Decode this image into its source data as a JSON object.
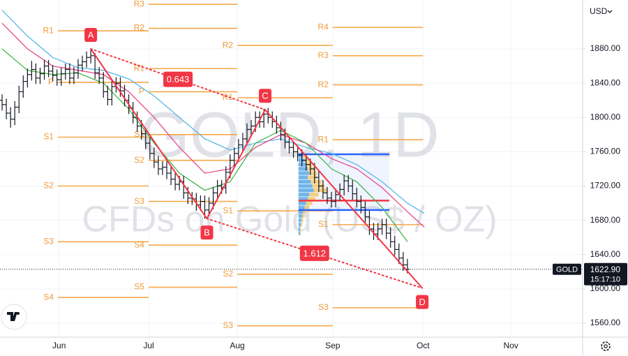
{
  "chart_data": {
    "type": "ohlc",
    "symbol": "GOLD",
    "currency": "USD",
    "watermark": {
      "title": "GOLD, 1D",
      "subtitle": "CFDs on Gold (US$ / OZ)"
    },
    "xlim": [
      -0.5,
      137.5
    ],
    "ylim": [
      1543.7,
      1937
    ],
    "grid": true,
    "xticks": [
      {
        "value": 13.5,
        "label": "Jun"
      },
      {
        "value": 34.7,
        "label": "Jul"
      },
      {
        "value": 55.7,
        "label": "Aug"
      },
      {
        "value": 78.3,
        "label": "Sep"
      },
      {
        "value": 99.7,
        "label": "Oct"
      },
      {
        "value": 120.5,
        "label": "Nov"
      }
    ],
    "yticks": [
      {
        "value": 1560,
        "label": "1560.00"
      },
      {
        "value": 1600,
        "label": "1600.00"
      },
      {
        "value": 1640,
        "label": "1640.00"
      },
      {
        "value": 1680,
        "label": "1680.00"
      },
      {
        "value": 1720,
        "label": "1720.00"
      },
      {
        "value": 1760,
        "label": "1760.00"
      },
      {
        "value": 1800,
        "label": "1800.00"
      },
      {
        "value": 1840,
        "label": "1840.00"
      },
      {
        "value": 1880,
        "label": "1880.00"
      }
    ],
    "bar_color": "#131722",
    "open": [
      1820,
      1815,
      1805,
      1798,
      1812,
      1830,
      1842,
      1850,
      1856,
      1846,
      1851,
      1860,
      1854,
      1849,
      1844,
      1851,
      1856,
      1846,
      1852,
      1861,
      1865,
      1870,
      1872,
      1852,
      1846,
      1830,
      1821,
      1836,
      1840,
      1831,
      1820,
      1811,
      1800,
      1790,
      1781,
      1770,
      1758,
      1748,
      1740,
      1742,
      1735,
      1728,
      1722,
      1725,
      1712,
      1706,
      1705,
      1698,
      1702,
      1692,
      1700,
      1712,
      1720,
      1718,
      1736,
      1750,
      1758,
      1768,
      1775,
      1786,
      1790,
      1800,
      1795,
      1804,
      1800,
      1795,
      1788,
      1780,
      1771,
      1765,
      1760,
      1756,
      1750,
      1745,
      1740,
      1730,
      1720,
      1712,
      1706,
      1702,
      1710,
      1716,
      1726,
      1720,
      1711,
      1702,
      1695,
      1684,
      1670,
      1664,
      1670,
      1675,
      1665,
      1655,
      1646,
      1636,
      1628
    ],
    "high": [
      1827,
      1822,
      1812,
      1819,
      1837,
      1849,
      1857,
      1866,
      1863,
      1858,
      1867,
      1867,
      1861,
      1856,
      1858,
      1863,
      1863,
      1859,
      1868,
      1872,
      1877,
      1880,
      1875,
      1859,
      1853,
      1837,
      1843,
      1847,
      1847,
      1838,
      1827,
      1818,
      1807,
      1797,
      1788,
      1777,
      1765,
      1755,
      1749,
      1749,
      1742,
      1735,
      1732,
      1732,
      1719,
      1713,
      1712,
      1709,
      1709,
      1707,
      1719,
      1727,
      1727,
      1743,
      1757,
      1765,
      1775,
      1782,
      1793,
      1797,
      1807,
      1807,
      1810,
      1811,
      1807,
      1802,
      1795,
      1787,
      1778,
      1772,
      1767,
      1763,
      1757,
      1752,
      1747,
      1737,
      1727,
      1719,
      1713,
      1717,
      1723,
      1733,
      1733,
      1727,
      1718,
      1709,
      1702,
      1691,
      1677,
      1677,
      1682,
      1682,
      1672,
      1662,
      1653,
      1643,
      1635
    ],
    "low": [
      1808,
      1798,
      1788,
      1791,
      1805,
      1823,
      1835,
      1843,
      1839,
      1839,
      1844,
      1847,
      1842,
      1837,
      1837,
      1844,
      1839,
      1839,
      1845,
      1854,
      1858,
      1863,
      1845,
      1839,
      1823,
      1814,
      1814,
      1829,
      1824,
      1813,
      1804,
      1793,
      1783,
      1774,
      1763,
      1751,
      1741,
      1733,
      1733,
      1728,
      1721,
      1715,
      1715,
      1705,
      1699,
      1698,
      1691,
      1691,
      1682,
      1685,
      1693,
      1705,
      1711,
      1711,
      1729,
      1743,
      1751,
      1761,
      1768,
      1779,
      1783,
      1788,
      1788,
      1793,
      1788,
      1781,
      1773,
      1764,
      1758,
      1753,
      1749,
      1743,
      1738,
      1733,
      1723,
      1713,
      1705,
      1699,
      1695,
      1695,
      1703,
      1709,
      1713,
      1704,
      1695,
      1688,
      1677,
      1663,
      1657,
      1657,
      1663,
      1658,
      1648,
      1639,
      1629,
      1621,
      1618
    ],
    "close": [
      1815,
      1805,
      1798,
      1812,
      1830,
      1842,
      1850,
      1856,
      1846,
      1851,
      1860,
      1854,
      1849,
      1844,
      1851,
      1856,
      1846,
      1852,
      1861,
      1865,
      1870,
      1872,
      1852,
      1846,
      1830,
      1821,
      1836,
      1840,
      1831,
      1820,
      1811,
      1800,
      1790,
      1781,
      1770,
      1758,
      1748,
      1740,
      1742,
      1735,
      1728,
      1722,
      1725,
      1712,
      1706,
      1705,
      1698,
      1702,
      1692,
      1700,
      1712,
      1720,
      1718,
      1736,
      1750,
      1758,
      1768,
      1775,
      1786,
      1790,
      1800,
      1795,
      1804,
      1800,
      1795,
      1788,
      1780,
      1771,
      1765,
      1760,
      1756,
      1750,
      1745,
      1740,
      1730,
      1720,
      1712,
      1706,
      1702,
      1710,
      1716,
      1726,
      1720,
      1711,
      1702,
      1695,
      1684,
      1670,
      1664,
      1670,
      1675,
      1665,
      1655,
      1646,
      1636,
      1628,
      1622.9
    ],
    "series": [
      {
        "color": "#5bb8e8",
        "x": [
          0,
          6,
          12,
          18,
          24,
          30,
          36,
          42,
          48,
          54,
          60,
          66,
          72,
          78,
          84,
          90,
          96,
          100
        ],
        "values": [
          1925,
          1895,
          1870,
          1858,
          1855,
          1845,
          1825,
          1800,
          1775,
          1762,
          1770,
          1775,
          1765,
          1758,
          1745,
          1725,
          1700,
          1688
        ]
      },
      {
        "color": "#e8488a",
        "x": [
          0,
          6,
          12,
          18,
          24,
          30,
          36,
          42,
          48,
          54,
          60,
          66,
          72,
          78,
          84,
          90,
          96,
          100
        ],
        "values": [
          1910,
          1880,
          1860,
          1855,
          1850,
          1830,
          1800,
          1765,
          1735,
          1740,
          1765,
          1780,
          1770,
          1752,
          1740,
          1718,
          1690,
          1672
        ]
      },
      {
        "color": "#43b649",
        "x": [
          0,
          6,
          12,
          18,
          24,
          30,
          36,
          42,
          48,
          54,
          60,
          66,
          72,
          78,
          84,
          90,
          96
        ],
        "values": [
          1880,
          1855,
          1850,
          1852,
          1840,
          1810,
          1770,
          1735,
          1715,
          1725,
          1770,
          1785,
          1770,
          1740,
          1725,
          1695,
          1655
        ]
      }
    ],
    "pivot_color": "#f7a84a",
    "pivots": [
      {
        "x": [
          13.2,
          34.7
        ],
        "levels": [
          {
            "label": "R1",
            "value": 1901
          },
          {
            "label": "P",
            "value": 1841
          },
          {
            "label": "S1",
            "value": 1777
          },
          {
            "label": "S2",
            "value": 1720
          },
          {
            "label": "S3",
            "value": 1655
          },
          {
            "label": "S4",
            "value": 1590
          }
        ]
      },
      {
        "x": [
          34.7,
          55.7
        ],
        "levels": [
          {
            "label": "R3",
            "value": 1932
          },
          {
            "label": "R2",
            "value": 1904
          },
          {
            "label": "R1",
            "value": 1857
          },
          {
            "label": "P",
            "value": 1830
          },
          {
            "label": "S1",
            "value": 1780
          },
          {
            "label": "S2",
            "value": 1750
          },
          {
            "label": "S3",
            "value": 1702
          },
          {
            "label": "S4",
            "value": 1651
          },
          {
            "label": "S5",
            "value": 1602
          }
        ]
      },
      {
        "x": [
          55.7,
          78.3
        ],
        "levels": [
          {
            "label": "R2",
            "value": 1884
          },
          {
            "label": "R1",
            "value": 1823
          },
          {
            "label": "S1",
            "value": 1691
          },
          {
            "label": "S2",
            "value": 1617
          },
          {
            "label": "S3",
            "value": 1557
          }
        ]
      },
      {
        "x": [
          78.3,
          99.7
        ],
        "levels": [
          {
            "label": "R4",
            "value": 1905
          },
          {
            "label": "R3",
            "value": 1872
          },
          {
            "label": "R2",
            "value": 1838
          },
          {
            "label": "R1",
            "value": 1774
          },
          {
            "label": "S1",
            "value": 1675
          },
          {
            "label": "S3",
            "value": 1578
          }
        ]
      }
    ],
    "profile": {
      "x": [
        70.2,
        91.7
      ],
      "prices": [
        1755,
        1750,
        1745,
        1740,
        1735,
        1730,
        1725,
        1720,
        1715,
        1710,
        1705,
        1700,
        1695,
        1690,
        1685,
        1680,
        1675,
        1670,
        1665
      ],
      "up": [
        6,
        8,
        10,
        12,
        14,
        12,
        16,
        18,
        20,
        14,
        12,
        10,
        8,
        6,
        5,
        4,
        3,
        2,
        2
      ],
      "down": [
        4,
        6,
        8,
        10,
        10,
        12,
        14,
        16,
        18,
        12,
        10,
        8,
        6,
        4,
        3,
        2,
        2,
        1,
        1
      ],
      "up_color": "#5aa9e6",
      "down_color": "#f5c86b",
      "lines": [
        {
          "value": 1757,
          "color": "#2962ff"
        },
        {
          "value": 1703,
          "color": "#f23645"
        },
        {
          "value": 1692,
          "color": "#2962ff"
        }
      ]
    },
    "harmonic": {
      "color": "#f23645",
      "points": [
        {
          "label": "A",
          "x": 21,
          "value": 1880
        },
        {
          "label": "B",
          "x": 48.5,
          "value": 1682
        },
        {
          "label": "C",
          "x": 62.3,
          "value": 1809
        },
        {
          "label": "D",
          "x": 99.5,
          "value": 1601
        }
      ],
      "ratios": [
        0.643,
        1.612
      ]
    },
    "price_label": {
      "value": 1622.9,
      "label": "1622.90",
      "countdown": "15:17:10"
    }
  }
}
